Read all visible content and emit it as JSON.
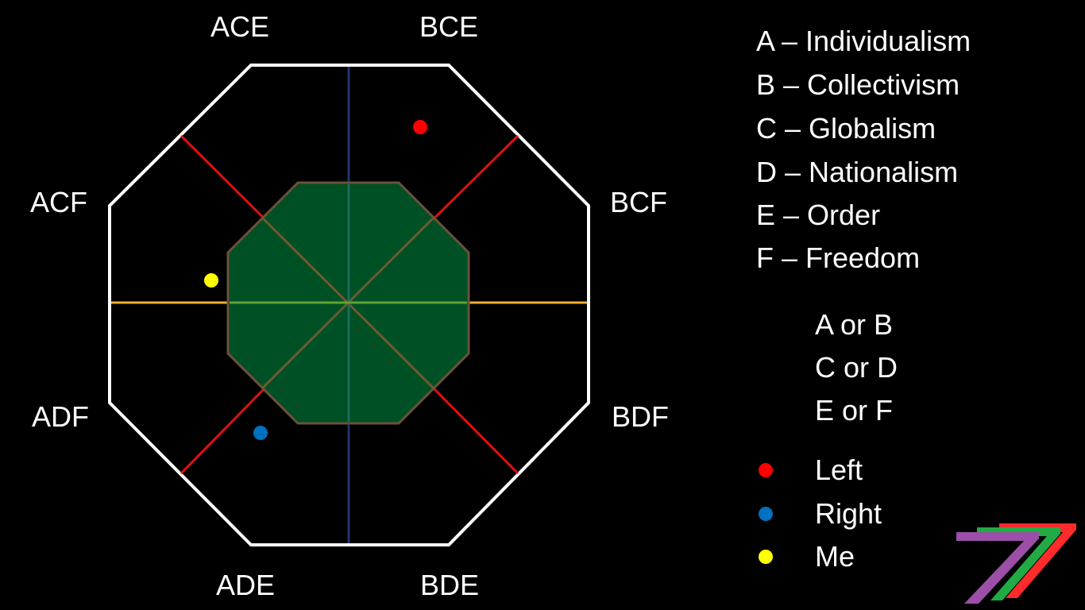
{
  "vertex_labels": {
    "ace": "ACE",
    "bce": "BCE",
    "acf": "ACF",
    "bcf": "BCF",
    "adf": "ADF",
    "bdf": "BDF",
    "ade": "ADE",
    "bde": "BDE"
  },
  "legend": {
    "definitions": [
      "A – Individualism",
      "B – Collectivism",
      "C – Globalism",
      "D – Nationalism",
      "E – Order",
      "F – Freedom"
    ],
    "choices": [
      "A or B",
      "C or D",
      "E or F"
    ],
    "markers": [
      {
        "label": "Left",
        "color": "#ff0000"
      },
      {
        "label": "Right",
        "color": "#0070c0"
      },
      {
        "label": "Me",
        "color": "#ffff00"
      }
    ]
  },
  "colors": {
    "background": "#000000",
    "outer_octagon": "#ffffff",
    "inner_octagon_fill": "#005026",
    "inner_octagon_stroke": "#6b5138",
    "vertical_axis": "#1f3470",
    "horizontal_axis": "#f0b030",
    "diagonal_axes": "#e01010",
    "left_point": "#ff0000",
    "right_point": "#0070c0",
    "me_point": "#ffff00"
  },
  "logo": {
    "icon": "seven-stripes-logo",
    "stripe_colors": [
      "#ff2a2a",
      "#22aa44",
      "#9b4fa8"
    ]
  }
}
